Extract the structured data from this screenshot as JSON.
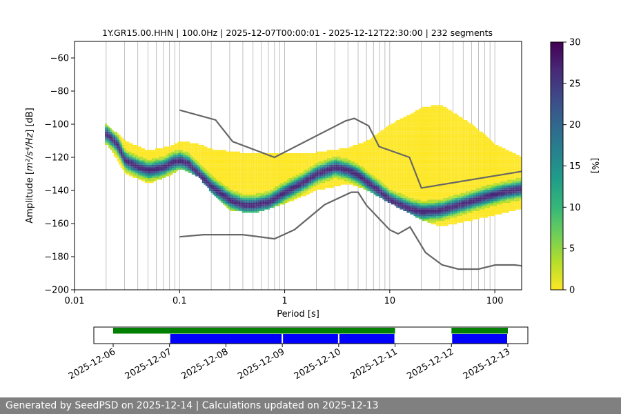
{
  "chart_data": [
    {
      "type": "heatmap",
      "title": "1Y.GR15.00.HHN | 100.0Hz | 2025-12-07T00:00:01 - 2025-12-12T22:30:00 | 232 segments",
      "xlabel": "Period [s]",
      "ylabel_prefix": "Amplitude [",
      "ylabel_math": "m²/s⁴/Hz",
      "ylabel_suffix": "] [dB]",
      "x_scale": "log",
      "xlim": [
        0.01,
        180
      ],
      "ylim": [
        -200,
        -50
      ],
      "grid": "vertical log gridlines",
      "x_ticks": [
        {
          "value": 0.01,
          "label": "0.01"
        },
        {
          "value": 0.1,
          "label": "0.1"
        },
        {
          "value": 1,
          "label": "1"
        },
        {
          "value": 10,
          "label": "10"
        },
        {
          "value": 100,
          "label": "100"
        }
      ],
      "y_ticks": [
        {
          "value": -60,
          "label": "−60"
        },
        {
          "value": -80,
          "label": "−80"
        },
        {
          "value": -100,
          "label": "−100"
        },
        {
          "value": -120,
          "label": "−120"
        },
        {
          "value": -140,
          "label": "−140"
        },
        {
          "value": -160,
          "label": "−160"
        },
        {
          "value": -180,
          "label": "−180"
        },
        {
          "value": -200,
          "label": "−200"
        }
      ],
      "colorbar": {
        "label": "[%]",
        "range": [
          0,
          30
        ],
        "ticks": [
          {
            "value": 0,
            "label": "0"
          },
          {
            "value": 5,
            "label": "5"
          },
          {
            "value": 10,
            "label": "10"
          },
          {
            "value": 15,
            "label": "15"
          },
          {
            "value": 20,
            "label": "20"
          },
          {
            "value": 25,
            "label": "25"
          },
          {
            "value": 30,
            "label": "30"
          }
        ],
        "colors": [
          "#fde725",
          "#b5de2b",
          "#6ece58",
          "#35b779",
          "#1f9e89",
          "#26828e",
          "#31688e",
          "#3e4989",
          "#482878",
          "#440154"
        ]
      },
      "mode_curve": [
        [
          0.02,
          -106
        ],
        [
          0.025,
          -112
        ],
        [
          0.03,
          -122
        ],
        [
          0.04,
          -126
        ],
        [
          0.05,
          -128
        ],
        [
          0.06,
          -127
        ],
        [
          0.07,
          -126
        ],
        [
          0.085,
          -123
        ],
        [
          0.1,
          -122
        ],
        [
          0.12,
          -124
        ],
        [
          0.15,
          -130
        ],
        [
          0.2,
          -138
        ],
        [
          0.3,
          -146
        ],
        [
          0.4,
          -149
        ],
        [
          0.5,
          -149
        ],
        [
          0.7,
          -147
        ],
        [
          1,
          -141
        ],
        [
          1.5,
          -135
        ],
        [
          2,
          -130
        ],
        [
          3,
          -126
        ],
        [
          4,
          -128
        ],
        [
          5,
          -131
        ],
        [
          6,
          -135
        ],
        [
          8,
          -141
        ],
        [
          10,
          -146
        ],
        [
          15,
          -151
        ],
        [
          20,
          -153
        ],
        [
          30,
          -152
        ],
        [
          50,
          -148
        ],
        [
          80,
          -144
        ],
        [
          120,
          -141
        ],
        [
          180,
          -139
        ]
      ],
      "spread_upper": [
        [
          0.02,
          -100
        ],
        [
          0.03,
          -110
        ],
        [
          0.05,
          -116
        ],
        [
          0.08,
          -113
        ],
        [
          0.1,
          -110
        ],
        [
          0.15,
          -112
        ],
        [
          0.2,
          -115
        ],
        [
          0.5,
          -118
        ],
        [
          1,
          -118
        ],
        [
          2,
          -117
        ],
        [
          4,
          -114
        ],
        [
          6,
          -110
        ],
        [
          10,
          -100
        ],
        [
          20,
          -90
        ],
        [
          30,
          -88
        ],
        [
          60,
          -100
        ],
        [
          100,
          -112
        ],
        [
          180,
          -120
        ]
      ],
      "spread_lower": [
        [
          0.02,
          -112
        ],
        [
          0.03,
          -130
        ],
        [
          0.05,
          -136
        ],
        [
          0.08,
          -131
        ],
        [
          0.1,
          -127
        ],
        [
          0.15,
          -132
        ],
        [
          0.2,
          -142
        ],
        [
          0.3,
          -152
        ],
        [
          0.5,
          -154
        ],
        [
          1,
          -148
        ],
        [
          2,
          -140
        ],
        [
          4,
          -136
        ],
        [
          6,
          -140
        ],
        [
          10,
          -148
        ],
        [
          20,
          -158
        ],
        [
          30,
          -162
        ],
        [
          60,
          -158
        ],
        [
          100,
          -155
        ],
        [
          180,
          -151
        ]
      ],
      "nhnm": [
        [
          0.1,
          -91.5
        ],
        [
          0.22,
          -97.4
        ],
        [
          0.32,
          -110.5
        ],
        [
          0.8,
          -120
        ],
        [
          3.8,
          -98
        ],
        [
          4.6,
          -96.5
        ],
        [
          6.3,
          -101
        ],
        [
          7.9,
          -113.5
        ],
        [
          15.4,
          -120
        ],
        [
          20,
          -138.5
        ],
        [
          180,
          -128.5
        ]
      ],
      "nlnm": [
        [
          0.1,
          -168
        ],
        [
          0.17,
          -166.7
        ],
        [
          0.4,
          -166.7
        ],
        [
          0.8,
          -169.2
        ],
        [
          1.24,
          -163.7
        ],
        [
          2.4,
          -148.6
        ],
        [
          4.3,
          -141.1
        ],
        [
          5,
          -141.1
        ],
        [
          6,
          -149
        ],
        [
          10,
          -163.8
        ],
        [
          12,
          -166.2
        ],
        [
          15.6,
          -162.1
        ],
        [
          21.9,
          -177.5
        ],
        [
          31.6,
          -185
        ],
        [
          45,
          -187.5
        ],
        [
          70,
          -187.5
        ],
        [
          101,
          -185
        ],
        [
          154,
          -185
        ],
        [
          180,
          -185.5
        ]
      ]
    },
    {
      "type": "timeline",
      "x_ticks": [
        "2025-12-06",
        "2025-12-07",
        "2025-12-08",
        "2025-12-09",
        "2025-12-10",
        "2025-12-11",
        "2025-12-12",
        "2025-12-13"
      ],
      "coverage_green": [
        [
          "2025-12-06T00:00",
          "2025-12-11T00:00"
        ],
        [
          "2025-12-12T00:00",
          "2025-12-13T00:00"
        ]
      ],
      "coverage_blue": [
        [
          "2025-12-07T00:00",
          "2025-12-09T00:00"
        ],
        [
          "2025-12-09T00:00",
          "2025-12-10T00:00"
        ],
        [
          "2025-12-10T00:00",
          "2025-12-11T00:00"
        ],
        [
          "2025-12-12T00:00",
          "2025-12-13T00:00"
        ]
      ]
    }
  ],
  "footer": "Generated by SeedPSD on 2025-12-14 | Calculations updated on 2025-12-13"
}
